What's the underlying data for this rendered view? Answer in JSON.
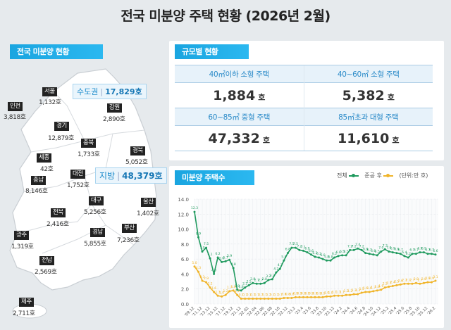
{
  "title": "전국 미분양 주택 현황  (2026년 2월)",
  "map": {
    "heading": "전국 미분양 현황",
    "capital_area": {
      "label": "수도권",
      "value": "17,829호"
    },
    "provinces_area": {
      "label": "지방",
      "value": "48,379호"
    },
    "regions": [
      {
        "name": "서울",
        "value": "1,132호"
      },
      {
        "name": "인천",
        "value": "3,818호"
      },
      {
        "name": "강원",
        "value": "2,890호"
      },
      {
        "name": "경기",
        "value": "12,879호"
      },
      {
        "name": "충북",
        "value": "1,733호"
      },
      {
        "name": "경북",
        "value": "5,052호"
      },
      {
        "name": "세종",
        "value": "42호"
      },
      {
        "name": "충남",
        "value": "8,146호"
      },
      {
        "name": "대전",
        "value": "1,752호"
      },
      {
        "name": "대구",
        "value": "5,256호"
      },
      {
        "name": "울산",
        "value": "1,402호"
      },
      {
        "name": "전북",
        "value": "2,416호"
      },
      {
        "name": "경남",
        "value": "5,855호"
      },
      {
        "name": "부산",
        "value": "7,236호"
      },
      {
        "name": "광주",
        "value": "1,319호"
      },
      {
        "name": "전남",
        "value": "2,569호"
      },
      {
        "name": "제주",
        "value": "2,711호"
      }
    ]
  },
  "size": {
    "heading": "규모별 현황",
    "unit": "호",
    "items": [
      {
        "label": "40㎡이하 소형 주택",
        "value": "1,884"
      },
      {
        "label": "40~60㎡ 소형 주택",
        "value": "5,382"
      },
      {
        "label": "60~85㎡ 중형 주택",
        "value": "47,332"
      },
      {
        "label": "85㎡초과 대형 주택",
        "value": "11,610"
      }
    ]
  },
  "chart_heading": "미분양 주택수",
  "chart_data": {
    "type": "line",
    "unit_note": "(단위:만 호)",
    "ylim": [
      0,
      14
    ],
    "yticks": [
      "0.0",
      "2.0",
      "4.0",
      "6.0",
      "8.0",
      "10.0",
      "12.0",
      "14.0"
    ],
    "grid": true,
    "legend_position": "top-right",
    "xtick_labels": [
      "'09.12",
      "'11.12",
      "'13.12",
      "'15.12",
      "'17.12",
      "'19.12",
      "'21.12",
      "'22.02",
      "'22.04",
      "'22.06",
      "'22.08",
      "'22.10",
      "'22.12",
      "'23.2",
      "'23.4",
      "'23.6",
      "'23.8",
      "'23.10",
      "'23.12",
      "'24.2",
      "'24.4",
      "'24.6",
      "'24.8",
      "'24.10",
      "'24.12",
      "'25.2",
      "'25.4",
      "'25.6",
      "'25.8",
      "'25.10",
      "'25.12",
      "'26.2"
    ],
    "x": [
      "09.12",
      "10.12",
      "11.12",
      "12.12",
      "13.12",
      "14.12",
      "15.12",
      "16.12",
      "17.12",
      "18.12",
      "19.12",
      "20.12",
      "21.12",
      "22.1",
      "22.2",
      "22.3",
      "22.4",
      "22.5",
      "22.6",
      "22.7",
      "22.8",
      "22.9",
      "22.10",
      "22.11",
      "22.12",
      "23.1",
      "23.2",
      "23.3",
      "23.4",
      "23.5",
      "23.6",
      "23.7",
      "23.8",
      "23.9",
      "23.10",
      "23.11",
      "23.12",
      "24.1",
      "24.2",
      "24.3",
      "24.4",
      "24.5",
      "24.6",
      "24.7",
      "24.8",
      "24.9",
      "24.10",
      "24.11",
      "24.12",
      "25.1",
      "25.2",
      "25.3",
      "25.4",
      "25.5",
      "25.6",
      "25.7",
      "25.8",
      "25.9",
      "25.10",
      "25.11",
      "25.12",
      "26.1",
      "26.2"
    ],
    "series": [
      {
        "name": "전체",
        "color": "#1f9a5e",
        "values": [
          12.3,
          8.9,
          7.0,
          7.5,
          6.1,
          4.0,
          6.2,
          5.6,
          5.7,
          5.9,
          4.8,
          1.9,
          1.8,
          2.2,
          2.5,
          2.8,
          2.7,
          2.7,
          2.8,
          3.2,
          3.3,
          4.2,
          4.7,
          5.8,
          6.8,
          7.5,
          7.5,
          7.2,
          7.1,
          6.9,
          6.6,
          6.3,
          6.2,
          6.0,
          5.8,
          5.8,
          6.2,
          6.4,
          6.5,
          6.5,
          7.2,
          7.2,
          7.4,
          7.2,
          6.8,
          6.7,
          6.6,
          6.5,
          7.0,
          7.3,
          7.0,
          6.9,
          6.8,
          6.7,
          6.4,
          6.2,
          6.7,
          6.7,
          6.9,
          6.9,
          6.7,
          6.7,
          6.6
        ]
      },
      {
        "name": "준공 후",
        "color": "#f0b429",
        "values": [
          5.0,
          4.3,
          3.1,
          2.9,
          2.2,
          1.6,
          1.1,
          1.0,
          1.2,
          1.7,
          1.8,
          1.2,
          0.7,
          0.7,
          0.7,
          0.7,
          0.7,
          0.7,
          0.7,
          0.7,
          0.7,
          0.7,
          0.7,
          0.8,
          0.8,
          0.8,
          0.9,
          0.9,
          0.9,
          0.9,
          0.9,
          0.9,
          0.9,
          0.9,
          1.0,
          1.0,
          1.1,
          1.1,
          1.1,
          1.2,
          1.2,
          1.3,
          1.3,
          1.5,
          1.6,
          1.6,
          1.7,
          1.8,
          1.9,
          2.2,
          2.3,
          2.4,
          2.5,
          2.6,
          2.7,
          2.7,
          2.7,
          2.8,
          2.7,
          2.8,
          2.9,
          2.9,
          3.1
        ]
      }
    ]
  }
}
